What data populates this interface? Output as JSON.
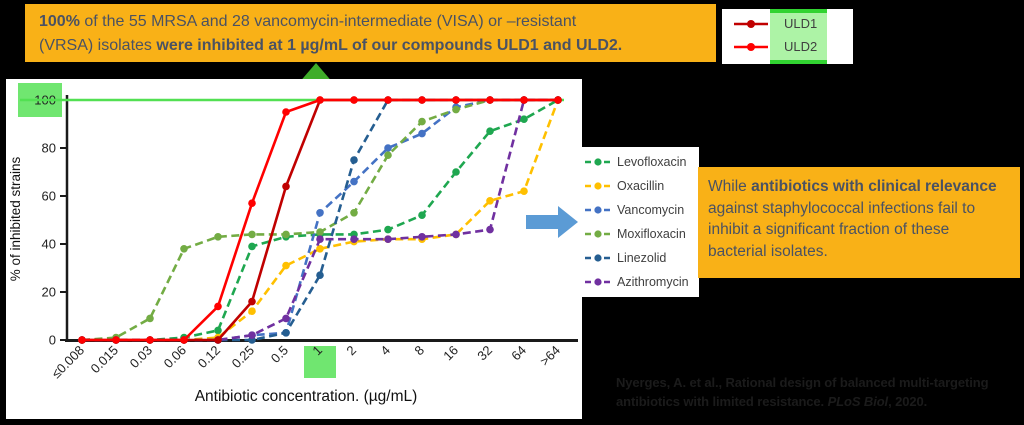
{
  "banner": {
    "bold_lead": "100%",
    "line1_rest": " of the 55 MRSA and 28 vancomycin-intermediate (VISA) or –resistant",
    "line2_start": "(VRSA) isolates ",
    "line2_bold": "were inhibited at 1 µg/mL of our compounds ULD1 and ULD2."
  },
  "uld_legend": {
    "items": [
      {
        "series": "ULD1"
      },
      {
        "series": "ULD2"
      }
    ]
  },
  "antibiotic_legend": {
    "items": [
      {
        "series": "Levofloxacin"
      },
      {
        "series": "Oxacillin"
      },
      {
        "series": "Vancomycin"
      },
      {
        "series": "Moxifloxacin"
      },
      {
        "series": "Linezolid"
      },
      {
        "series": "Azithromycin"
      }
    ]
  },
  "side_note": {
    "start": "While ",
    "bold": "antibiotics with clinical relevance",
    "rest": " against staphylococcal infections fail to inhibit a significant fraction of these bacterial isolates."
  },
  "citation": {
    "line1": "Nyerges, A. et al., Rational design of balanced multi-targeting",
    "line2_start": "antibiotics with limited resistance. ",
    "line2_italic": "PLoS Biol",
    "line2_end": ", 2020."
  },
  "decor": {
    "background": "#000000",
    "banner_bg": "#F9B117",
    "note_bg": "#F9B117",
    "dark_text": "#4A5263",
    "green_arrow_head": "#3FAD29",
    "green_arrow_stem": "#94E594",
    "blue_arrow": "#5B9BD5",
    "highlight_green": "#70E670",
    "hline_green": "#52E052",
    "uld_strip_fill": "#ADF3A6",
    "uld_strip_border": "#31D331",
    "citation_color": "#1B1B1B",
    "axis_color": "#1A1A1A"
  },
  "chart_data": {
    "type": "line",
    "title": "",
    "xlabel": "Antibiotic concentration. (µg/mL)",
    "ylabel": "% of inhibited strains",
    "categories": [
      "≤0.008",
      "0.015",
      "0.03",
      "0.06",
      "0.12",
      "0.25",
      "0.5",
      "1",
      "2",
      "4",
      "8",
      "16",
      "32",
      "64",
      ">64"
    ],
    "ylim": [
      0,
      100
    ],
    "yticks": [
      0,
      20,
      40,
      60,
      80,
      100
    ],
    "grid": false,
    "legend_position": "right",
    "highlight": {
      "y_tick": 100,
      "x_category": "1",
      "reference_line_y": 100
    },
    "series": [
      {
        "name": "Levofloxacin",
        "color": "#1FA750",
        "style": "dashed",
        "values": [
          0,
          0,
          0,
          1,
          4,
          39,
          43,
          44,
          44,
          46,
          52,
          70,
          87,
          92,
          100
        ]
      },
      {
        "name": "Oxacillin",
        "color": "#FFC000",
        "style": "dashed",
        "values": [
          0,
          0,
          0,
          0,
          1,
          12,
          31,
          38,
          41,
          42,
          42,
          44,
          58,
          62,
          100
        ]
      },
      {
        "name": "Vancomycin",
        "color": "#4472C4",
        "style": "dashed",
        "values": [
          0,
          0,
          0,
          0,
          0,
          2,
          3,
          53,
          66,
          80,
          86,
          97,
          100,
          100,
          100
        ]
      },
      {
        "name": "Moxifloxacin",
        "color": "#73AC44",
        "style": "dashed",
        "values": [
          0,
          1,
          9,
          38,
          43,
          44,
          44,
          45,
          53,
          77,
          91,
          96,
          100,
          100,
          100
        ]
      },
      {
        "name": "Linezolid",
        "color": "#255E91",
        "style": "dashed",
        "values": [
          0,
          0,
          0,
          0,
          0,
          0,
          3,
          27,
          75,
          100,
          100,
          100,
          100,
          100,
          100
        ]
      },
      {
        "name": "Azithromycin",
        "color": "#7030A0",
        "style": "dashed",
        "values": [
          0,
          0,
          0,
          0,
          0,
          2,
          9,
          42,
          42,
          42,
          43,
          44,
          46,
          100,
          100
        ]
      },
      {
        "name": "ULD1",
        "color": "#C00000",
        "style": "solid",
        "values": [
          0,
          0,
          0,
          0,
          0,
          16,
          64,
          100,
          100,
          100,
          100,
          100,
          100,
          100,
          100
        ]
      },
      {
        "name": "ULD2",
        "color": "#FF0000",
        "style": "solid",
        "values": [
          0,
          0,
          0,
          0,
          14,
          57,
          95,
          100,
          100,
          100,
          100,
          100,
          100,
          100,
          100
        ]
      }
    ]
  }
}
